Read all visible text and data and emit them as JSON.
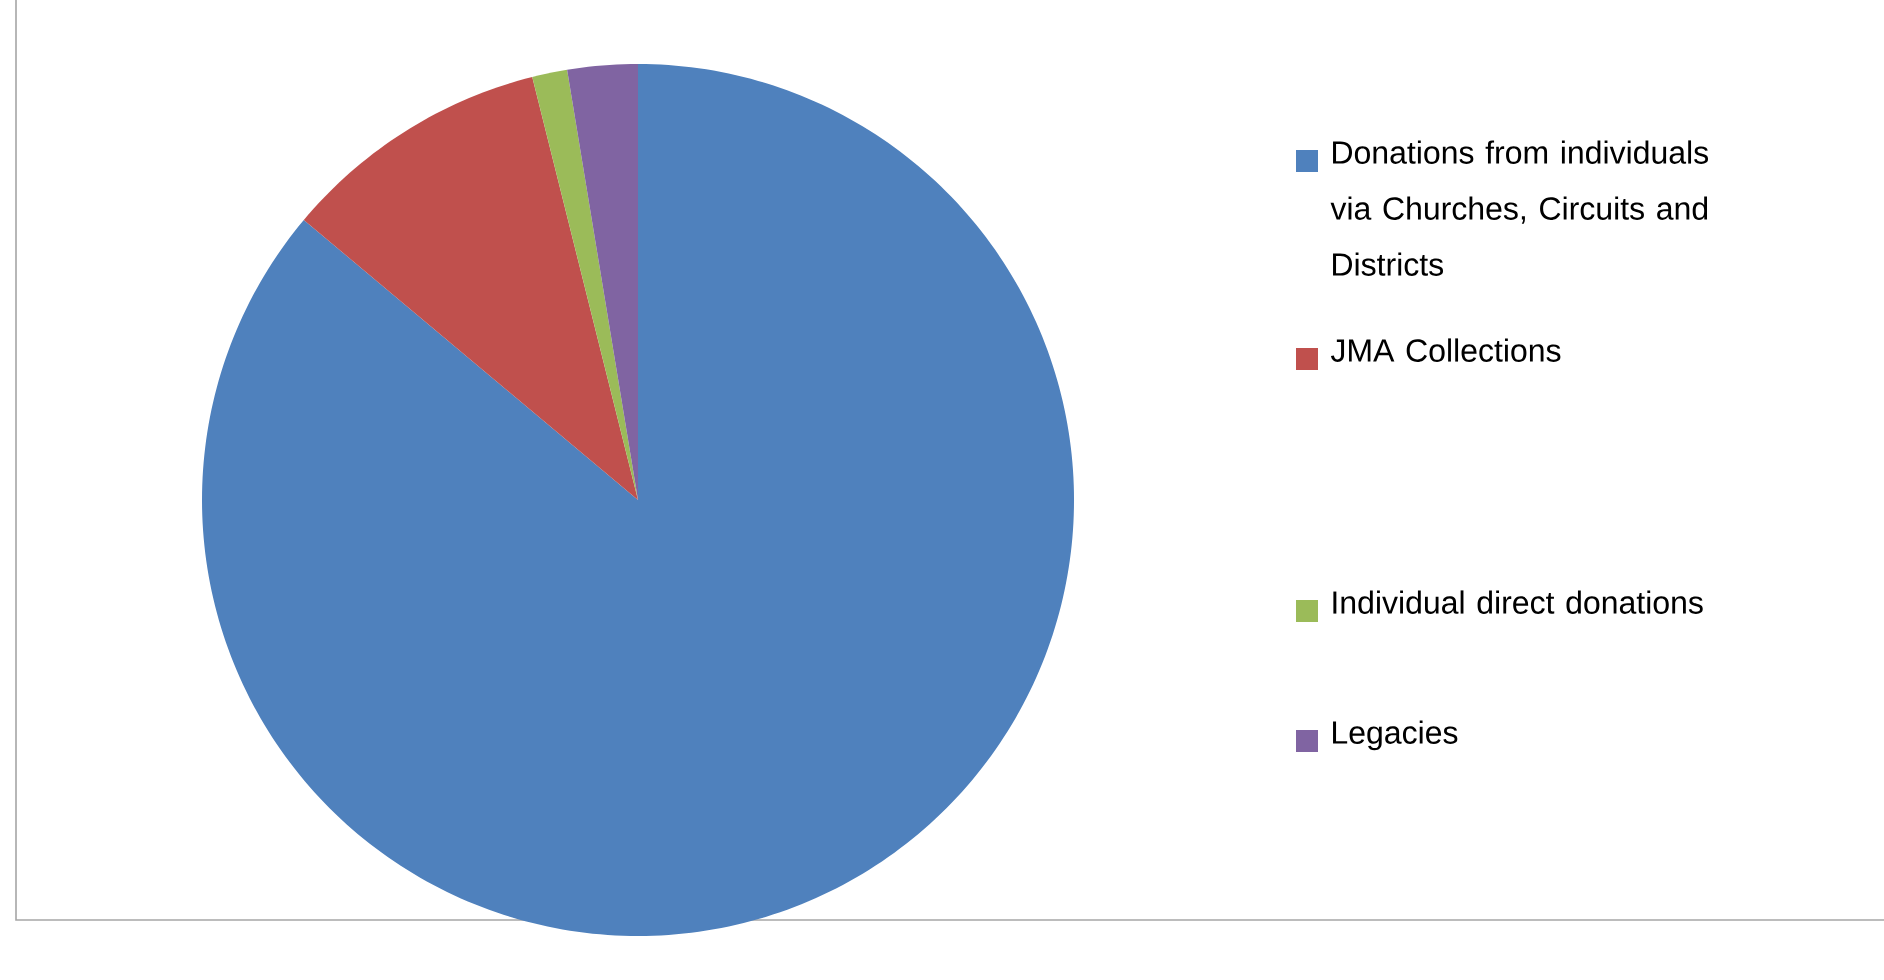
{
  "chart_data": {
    "type": "pie",
    "categories": [
      "Donations from individuals via Churches, Circuits and Districts",
      "JMA Collections",
      "Individual direct donations",
      "Legacies"
    ],
    "values": [
      86.1,
      10.0,
      1.3,
      2.6
    ],
    "colors": [
      "#4f81bd",
      "#c0504d",
      "#9bbb59",
      "#8064a2"
    ],
    "legend": "right"
  }
}
